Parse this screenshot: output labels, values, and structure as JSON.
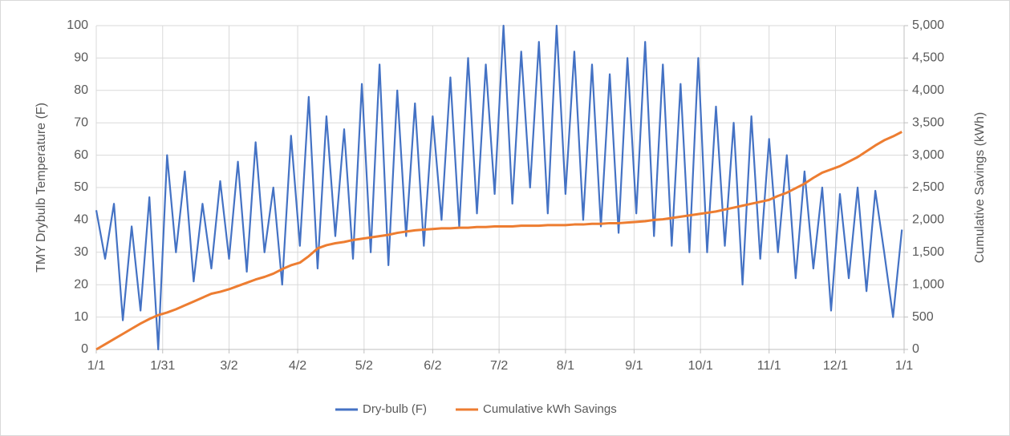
{
  "chart_data": {
    "type": "line",
    "x": [
      0,
      4,
      8,
      12,
      16,
      20,
      24,
      28,
      32,
      36,
      40,
      44,
      48,
      52,
      56,
      60,
      64,
      68,
      72,
      76,
      80,
      84,
      88,
      92,
      96,
      100,
      104,
      108,
      112,
      116,
      120,
      124,
      128,
      132,
      136,
      140,
      144,
      148,
      152,
      156,
      160,
      164,
      168,
      172,
      176,
      180,
      184,
      188,
      192,
      196,
      200,
      204,
      208,
      212,
      216,
      220,
      224,
      228,
      232,
      236,
      240,
      244,
      248,
      252,
      256,
      260,
      264,
      268,
      272,
      276,
      280,
      284,
      288,
      292,
      296,
      300,
      304,
      308,
      312,
      316,
      320,
      324,
      328,
      332,
      336,
      340,
      344,
      348,
      352,
      356,
      360,
      364
    ],
    "series": [
      {
        "name": "Dry-bulb (F)",
        "color": "#4472c4",
        "axis": "y",
        "values": [
          43,
          28,
          45,
          9,
          38,
          12,
          47,
          0,
          60,
          30,
          55,
          21,
          45,
          25,
          52,
          28,
          58,
          24,
          64,
          30,
          50,
          20,
          66,
          32,
          78,
          25,
          72,
          35,
          68,
          28,
          82,
          30,
          88,
          26,
          80,
          35,
          76,
          32,
          72,
          40,
          84,
          38,
          90,
          42,
          88,
          48,
          100,
          45,
          92,
          50,
          95,
          42,
          100,
          48,
          92,
          40,
          88,
          38,
          85,
          36,
          90,
          42,
          95,
          35,
          88,
          32,
          82,
          30,
          90,
          30,
          75,
          32,
          70,
          20,
          72,
          28,
          65,
          30,
          60,
          22,
          55,
          25,
          50,
          12,
          48,
          22,
          50,
          18,
          49,
          30,
          10,
          37
        ]
      },
      {
        "name": "Cumulative kWh Savings",
        "color": "#ed7d31",
        "axis": "y2",
        "values": [
          0,
          80,
          160,
          240,
          320,
          400,
          470,
          530,
          570,
          620,
          680,
          740,
          800,
          860,
          890,
          930,
          980,
          1030,
          1080,
          1120,
          1170,
          1240,
          1300,
          1340,
          1440,
          1560,
          1610,
          1640,
          1660,
          1690,
          1710,
          1730,
          1750,
          1770,
          1800,
          1820,
          1840,
          1850,
          1860,
          1870,
          1870,
          1880,
          1880,
          1890,
          1890,
          1900,
          1900,
          1900,
          1910,
          1910,
          1910,
          1920,
          1920,
          1920,
          1930,
          1930,
          1940,
          1940,
          1950,
          1950,
          1960,
          1970,
          1980,
          2000,
          2010,
          2030,
          2050,
          2070,
          2090,
          2110,
          2130,
          2160,
          2190,
          2220,
          2250,
          2280,
          2310,
          2370,
          2420,
          2490,
          2560,
          2650,
          2730,
          2780,
          2830,
          2900,
          2970,
          3060,
          3150,
          3230,
          3290,
          3360
        ]
      }
    ],
    "y_label": "TMY Drybulb Temperature (F)",
    "y2_label": "Cumulative Savings (kWh)",
    "xlim": [
      0,
      365
    ],
    "xticks": [
      {
        "value": 0,
        "label": "1/1"
      },
      {
        "value": 30,
        "label": "1/31"
      },
      {
        "value": 60,
        "label": "3/2"
      },
      {
        "value": 91,
        "label": "4/2"
      },
      {
        "value": 121,
        "label": "5/2"
      },
      {
        "value": 152,
        "label": "6/2"
      },
      {
        "value": 182,
        "label": "7/2"
      },
      {
        "value": 212,
        "label": "8/1"
      },
      {
        "value": 243,
        "label": "9/1"
      },
      {
        "value": 273,
        "label": "10/1"
      },
      {
        "value": 304,
        "label": "11/1"
      },
      {
        "value": 334,
        "label": "12/1"
      },
      {
        "value": 365,
        "label": "1/1"
      }
    ],
    "ylim": [
      0,
      100
    ],
    "yticks": [
      0,
      10,
      20,
      30,
      40,
      50,
      60,
      70,
      80,
      90,
      100
    ],
    "y2lim": [
      0,
      5000
    ],
    "y2ticks": [
      0,
      500,
      {
        "value": 1000,
        "label": "1,000"
      },
      {
        "value": 1500,
        "label": "1,500"
      },
      {
        "value": 2000,
        "label": "2,000"
      },
      {
        "value": 2500,
        "label": "2,500"
      },
      {
        "value": 3000,
        "label": "3,000"
      },
      {
        "value": 3500,
        "label": "3,500"
      },
      {
        "value": 4000,
        "label": "4,000"
      },
      {
        "value": 4500,
        "label": "4,500"
      },
      {
        "value": 5000,
        "label": "5,000"
      }
    ],
    "grid": true,
    "legend": "bottom"
  }
}
